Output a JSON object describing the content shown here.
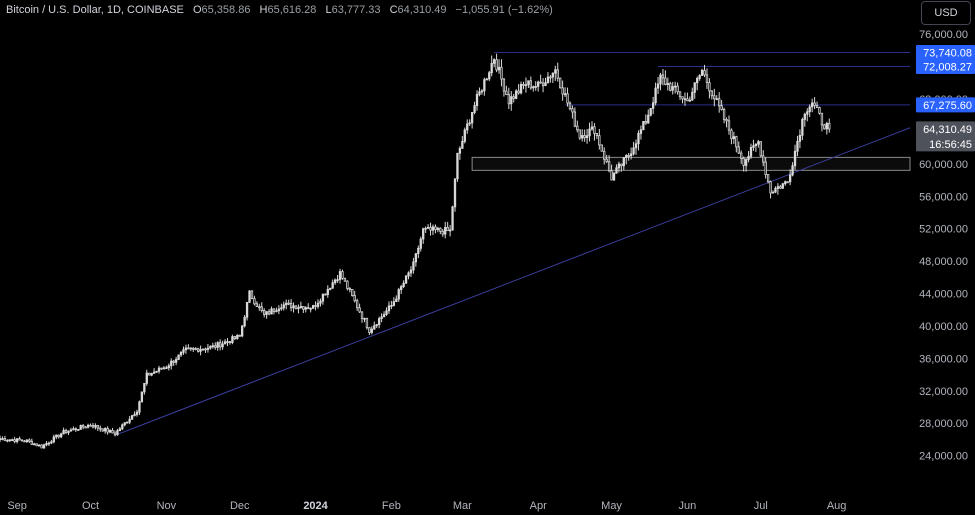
{
  "header": {
    "symbol": "Bitcoin / U.S. Dollar, 1D, COINBASE",
    "open_label": "O",
    "open": "65,358.86",
    "high_label": "H",
    "high": "65,616.28",
    "low_label": "L",
    "low": "63,777.33",
    "close_label": "C",
    "close": "64,310.49",
    "change": "−1,055.91 (−1.62%)"
  },
  "currency": "USD",
  "colors": {
    "background": "#000000",
    "candle": "#d9d9d9",
    "level_line": "#2a2e8c",
    "trendline": "#3a3f9e",
    "price_tag_blue": "#2962ff",
    "price_tag_grey": "#4e525b",
    "axis_text": "#b2b5be"
  },
  "chart_data": {
    "type": "candlestick",
    "x_tick_labels": [
      "Sep",
      "Oct",
      "Nov",
      "Dec",
      "2024",
      "Feb",
      "Mar",
      "Apr",
      "May",
      "Jun",
      "Jul",
      "Aug"
    ],
    "x_ticks": [
      "2023-09-01",
      "2023-10-01",
      "2023-11-01",
      "2023-12-01",
      "2024-01-01",
      "2024-02-01",
      "2024-03-01",
      "2024-04-01",
      "2024-05-01",
      "2024-06-01",
      "2024-07-01",
      "2024-08-01"
    ],
    "y_tick_labels": [
      "76,000.00",
      "68,000.00",
      "60,000.00",
      "56,000.00",
      "52,000.00",
      "48,000.00",
      "44,000.00",
      "40,000.00",
      "36,000.00",
      "32,000.00",
      "28,000.00",
      "24,000.00"
    ],
    "y_ticks": [
      76000,
      68000,
      60000,
      56000,
      52000,
      48000,
      44000,
      40000,
      36000,
      32000,
      28000,
      24000
    ],
    "y_range": [
      20000,
      78000
    ],
    "x_range": [
      "2023-08-25",
      "2024-08-31"
    ],
    "grid": false,
    "price_labels": [
      {
        "value": 73740.08,
        "text": "73,740.08",
        "style": "blue"
      },
      {
        "value": 72008.27,
        "text": "72,008.27",
        "style": "blue"
      },
      {
        "value": 67275.6,
        "text": "67,275.60",
        "style": "blue"
      },
      {
        "value": 64310.49,
        "text": "64,310.49",
        "style": "grey"
      }
    ],
    "countdown": "16:56:45",
    "levels": [
      {
        "value": 73740.08,
        "from": "2024-03-14",
        "to": "2024-08-31"
      },
      {
        "value": 72008.27,
        "from": "2024-05-20",
        "to": "2024-08-31"
      },
      {
        "value": 67275.6,
        "from": "2024-04-12",
        "to": "2024-08-31"
      }
    ],
    "zone": {
      "top": 60800,
      "bottom": 59200,
      "from": "2024-03-05",
      "to": "2024-08-31"
    },
    "trendline": {
      "points": [
        [
          "2023-10-11",
          26500
        ],
        [
          "2024-07-05",
          57800
        ]
      ],
      "extend_to": "2024-08-31"
    },
    "anchors": [
      [
        "2023-08-25",
        26100
      ],
      [
        "2023-09-05",
        25800
      ],
      [
        "2023-09-11",
        25100
      ],
      [
        "2023-09-20",
        26900
      ],
      [
        "2023-10-01",
        27800
      ],
      [
        "2023-10-11",
        26700
      ],
      [
        "2023-10-20",
        29600
      ],
      [
        "2023-10-24",
        33900
      ],
      [
        "2023-11-01",
        35000
      ],
      [
        "2023-11-09",
        37000
      ],
      [
        "2023-11-20",
        37400
      ],
      [
        "2023-12-01",
        38700
      ],
      [
        "2023-12-05",
        44000
      ],
      [
        "2023-12-11",
        41300
      ],
      [
        "2023-12-18",
        42600
      ],
      [
        "2023-12-31",
        42300
      ],
      [
        "2024-01-11",
        46500
      ],
      [
        "2024-01-23",
        39500
      ],
      [
        "2024-02-01",
        42500
      ],
      [
        "2024-02-10",
        47500
      ],
      [
        "2024-02-14",
        51800
      ],
      [
        "2024-02-25",
        51700
      ],
      [
        "2024-02-28",
        61000
      ],
      [
        "2024-03-05",
        66500
      ],
      [
        "2024-03-14",
        73100
      ],
      [
        "2024-03-20",
        67800
      ],
      [
        "2024-03-27",
        69900
      ],
      [
        "2024-04-01",
        69600
      ],
      [
        "2024-04-08",
        71600
      ],
      [
        "2024-04-18",
        63500
      ],
      [
        "2024-04-24",
        64300
      ],
      [
        "2024-05-01",
        58300
      ],
      [
        "2024-05-08",
        61100
      ],
      [
        "2024-05-15",
        65300
      ],
      [
        "2024-05-21",
        70600
      ],
      [
        "2024-06-01",
        67700
      ],
      [
        "2024-06-07",
        71500
      ],
      [
        "2024-06-15",
        66200
      ],
      [
        "2024-06-24",
        60300
      ],
      [
        "2024-06-30",
        62700
      ],
      [
        "2024-07-05",
        56600
      ],
      [
        "2024-07-12",
        57800
      ],
      [
        "2024-07-19",
        66600
      ],
      [
        "2024-07-22",
        67600
      ],
      [
        "2024-07-26",
        65200
      ],
      [
        "2024-07-29",
        64300
      ]
    ]
  }
}
